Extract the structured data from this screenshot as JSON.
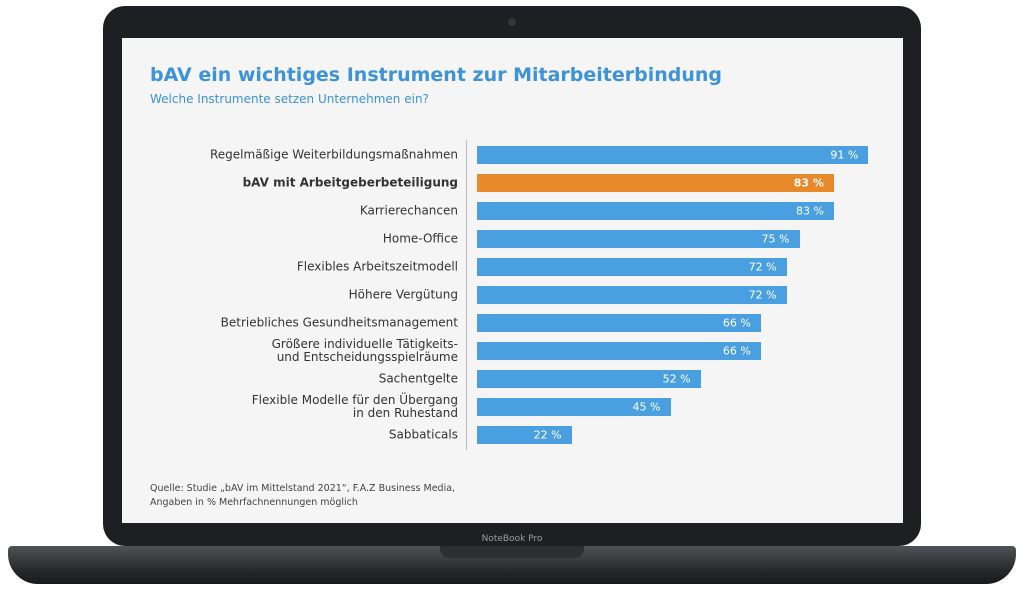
{
  "device_label": "NoteBook Pro",
  "chart_data": {
    "type": "bar",
    "orientation": "horizontal",
    "title": "bAV ein wichtiges Instrument zur Mitarbeiterbindung",
    "subtitle": "Welche Instrumente setzen Unternehmen ein?",
    "categories": [
      "Regelmäßige Weiterbildungsmaßnahmen",
      "bAV mit Arbeitgeberbeteiligung",
      "Karrierechancen",
      "Home-Office",
      "Flexibles Arbeitszeitmodell",
      "Höhere Vergütung",
      "Betriebliches Gesundheitsmanagement",
      "Größere individuelle Tätigkeits-\nund Entscheidungsspielräume",
      "Sachentgelte",
      "Flexible Modelle für den Übergang\nin den Ruhestand",
      "Sabbaticals"
    ],
    "values": [
      91,
      83,
      83,
      75,
      72,
      72,
      66,
      66,
      52,
      45,
      22
    ],
    "value_labels": [
      "91 %",
      "83 %",
      "83 %",
      "75 %",
      "72 %",
      "72 %",
      "66 %",
      "66 %",
      "52 %",
      "45 %",
      "22 %"
    ],
    "color": "#4a9fe0",
    "highlight_color": "#e8892b",
    "highlight_index": 1,
    "xlim": [
      0,
      100
    ],
    "source": [
      "Quelle: Studie „bAV im Mittelstand 2021“, F.A.Z Business Media,",
      "Angaben in % Mehrfachnennungen möglich"
    ]
  }
}
